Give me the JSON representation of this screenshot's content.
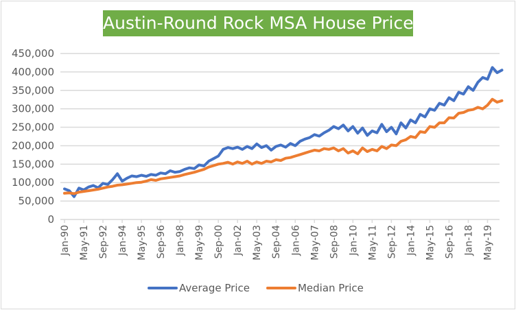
{
  "chart_data": {
    "type": "line",
    "title": "Austin-Round Rock MSA House Prices",
    "xlabel": "",
    "ylabel": "",
    "ylim": [
      0,
      450000
    ],
    "yticks": [
      "0",
      "50,000",
      "100,000",
      "150,000",
      "200,000",
      "250,000",
      "300,000",
      "350,000",
      "400,000",
      "450,000"
    ],
    "ytick_values": [
      0,
      50000,
      100000,
      150000,
      200000,
      250000,
      300000,
      350000,
      400000,
      450000
    ],
    "xticks": [
      "Jan-90",
      "May-91",
      "Sep-92",
      "Jan-94",
      "May-95",
      "Sep-96",
      "Jan-98",
      "May-99",
      "Sep-00",
      "Jan-02",
      "May-03",
      "Sep-04",
      "Jan-06",
      "May-07",
      "Sep-08",
      "Jan-10",
      "May-11",
      "Sep-12",
      "Jan-14",
      "May-15",
      "Sep-16",
      "Jan-18",
      "May-19"
    ],
    "xtick_month_index": [
      0,
      16,
      32,
      48,
      64,
      80,
      96,
      112,
      128,
      144,
      160,
      176,
      192,
      208,
      224,
      240,
      256,
      272,
      288,
      304,
      320,
      336,
      352
    ],
    "x_month_index_range": [
      0,
      362
    ],
    "sample_interval_months": 4,
    "grid": true,
    "legend_position": "bottom",
    "series": [
      {
        "name": "Average Price",
        "color": "#4472c4",
        "values": [
          83000,
          78000,
          62000,
          85000,
          80000,
          88000,
          92000,
          86000,
          98000,
          95000,
          108000,
          124000,
          104000,
          112000,
          118000,
          116000,
          120000,
          117000,
          122000,
          120000,
          126000,
          124000,
          132000,
          128000,
          130000,
          136000,
          140000,
          138000,
          148000,
          145000,
          158000,
          165000,
          172000,
          190000,
          195000,
          192000,
          196000,
          190000,
          198000,
          192000,
          205000,
          195000,
          200000,
          188000,
          198000,
          202000,
          196000,
          206000,
          200000,
          212000,
          218000,
          222000,
          230000,
          226000,
          235000,
          242000,
          252000,
          246000,
          256000,
          240000,
          252000,
          234000,
          248000,
          228000,
          240000,
          235000,
          258000,
          238000,
          250000,
          232000,
          262000,
          248000,
          270000,
          262000,
          285000,
          278000,
          300000,
          296000,
          315000,
          310000,
          330000,
          322000,
          345000,
          340000,
          360000,
          350000,
          372000,
          385000,
          380000,
          412000,
          398000,
          405000
        ],
        "note": "sampled every 4 months from Jan-90"
      },
      {
        "name": "Median Price",
        "color": "#ed7d31",
        "values": [
          71000,
          72000,
          70000,
          74000,
          76000,
          78000,
          80000,
          82000,
          85000,
          88000,
          90000,
          93000,
          94000,
          96000,
          98000,
          100000,
          101000,
          104000,
          108000,
          106000,
          110000,
          112000,
          114000,
          116000,
          118000,
          122000,
          125000,
          128000,
          132000,
          136000,
          142000,
          146000,
          150000,
          152000,
          155000,
          150000,
          156000,
          152000,
          158000,
          150000,
          156000,
          152000,
          158000,
          156000,
          162000,
          160000,
          166000,
          168000,
          172000,
          176000,
          180000,
          184000,
          188000,
          186000,
          192000,
          190000,
          194000,
          186000,
          192000,
          180000,
          186000,
          178000,
          194000,
          184000,
          190000,
          186000,
          198000,
          192000,
          202000,
          200000,
          212000,
          216000,
          225000,
          222000,
          238000,
          236000,
          252000,
          250000,
          262000,
          262000,
          276000,
          275000,
          288000,
          290000,
          296000,
          298000,
          304000,
          300000,
          310000,
          326000,
          318000,
          322000
        ],
        "note": "sampled every 4 months from Jan-90"
      }
    ]
  }
}
